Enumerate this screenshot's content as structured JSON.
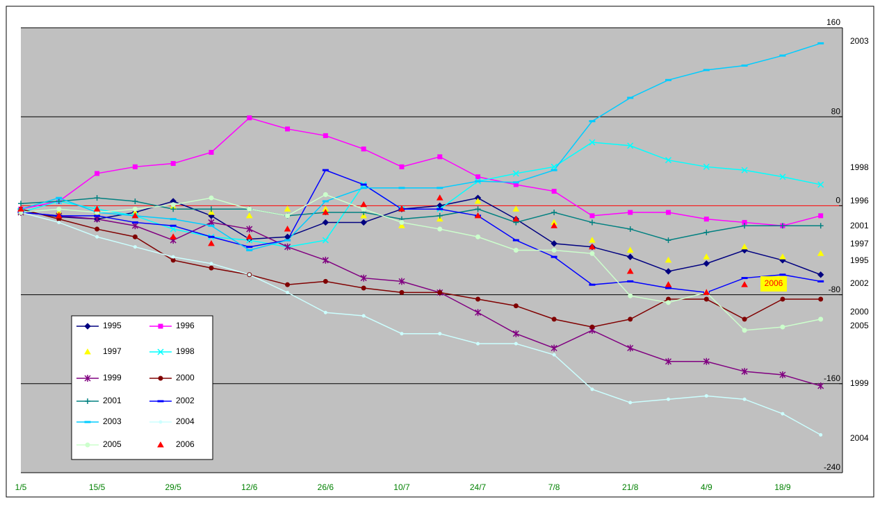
{
  "chart_data": {
    "type": "line",
    "categories": [
      "1/5",
      null,
      "15/5",
      null,
      "29/5",
      null,
      "12/6",
      null,
      "26/6",
      null,
      "10/7",
      null,
      "24/7",
      null,
      "7/8",
      null,
      "21/8",
      null,
      "4/9",
      null,
      "18/9",
      null
    ],
    "series": [
      {
        "name": "1995",
        "color": "#000080",
        "marker": "diamond",
        "line": true,
        "values": [
          -5,
          -10,
          -12,
          -6,
          4,
          -9,
          -30,
          -28,
          -15,
          -15,
          -3,
          0,
          7,
          -12,
          -34,
          -37,
          -46,
          -59,
          -52,
          -40,
          -49,
          -62
        ]
      },
      {
        "name": "1996",
        "color": "#ff00ff",
        "marker": "square",
        "line": true,
        "values": [
          -3,
          4,
          29,
          35,
          38,
          48,
          79,
          69,
          63,
          51,
          35,
          44,
          26,
          19,
          13,
          -9,
          -6,
          -6,
          -12,
          -15,
          -18,
          -9
        ]
      },
      {
        "name": "1997",
        "color": "#ffff00",
        "marker": "triangle",
        "line": false,
        "values": [
          -6,
          -6,
          -6,
          -6,
          -1,
          -6,
          -9,
          -3,
          -3,
          -9,
          -18,
          -12,
          4,
          -3,
          -15,
          -31,
          -40,
          -49,
          -46,
          -37,
          -46,
          -43
        ]
      },
      {
        "name": "1998",
        "color": "#00ffff",
        "marker": "x",
        "line": true,
        "values": [
          -6,
          4,
          -3,
          -9,
          -21,
          -28,
          -31,
          -37,
          -31,
          19,
          -3,
          -3,
          22,
          29,
          35,
          57,
          54,
          41,
          35,
          32,
          26,
          19
        ]
      },
      {
        "name": "1999",
        "color": "#800080",
        "marker": "star",
        "line": true,
        "values": [
          -6,
          -9,
          -12,
          -18,
          -31,
          -15,
          -21,
          -37,
          -49,
          -65,
          -68,
          -78,
          -96,
          -115,
          -128,
          -112,
          -128,
          -140,
          -140,
          -149,
          -152,
          -162
        ]
      },
      {
        "name": "2000",
        "color": "#800000",
        "marker": "circle",
        "line": true,
        "values": [
          -3,
          -12,
          -21,
          -28,
          -49,
          -56,
          -62,
          -71,
          -68,
          -74,
          -78,
          -78,
          -84,
          -90,
          -102,
          -109,
          -102,
          -84,
          -84,
          -102,
          -84,
          -84
        ]
      },
      {
        "name": "2001",
        "color": "#008080",
        "marker": "plus",
        "line": true,
        "values": [
          2,
          4,
          7,
          4,
          -3,
          -3,
          -3,
          -9,
          -6,
          -6,
          -12,
          -9,
          -3,
          -15,
          -6,
          -15,
          -21,
          -31,
          -24,
          -18,
          -18,
          -18
        ]
      },
      {
        "name": "2002",
        "color": "#0000ff",
        "marker": "dash",
        "line": true,
        "values": [
          -6,
          -9,
          -9,
          -15,
          -18,
          -28,
          -37,
          -31,
          32,
          19,
          -3,
          -3,
          -9,
          -31,
          -46,
          -71,
          -68,
          -74,
          -78,
          -65,
          -62,
          -68
        ]
      },
      {
        "name": "2003",
        "color": "#00ccff",
        "marker": "dash",
        "line": true,
        "values": [
          -3,
          7,
          -6,
          -9,
          -12,
          -18,
          -40,
          -31,
          4,
          16,
          16,
          16,
          22,
          21,
          32,
          76,
          97,
          113,
          122,
          126,
          135,
          146
        ]
      },
      {
        "name": "2004",
        "color": "#ccffff",
        "marker": "dot",
        "line": true,
        "values": [
          -6,
          -15,
          -28,
          -37,
          -46,
          -52,
          -62,
          -78,
          -96,
          -99,
          -115,
          -115,
          -124,
          -124,
          -134,
          -165,
          -177,
          -174,
          -171,
          -174,
          -187,
          -206
        ]
      },
      {
        "name": "2005",
        "color": "#ccffcc",
        "marker": "circle",
        "line": true,
        "values": [
          -6,
          -3,
          -6,
          -3,
          1,
          7,
          -3,
          -9,
          10,
          -3,
          -15,
          -21,
          -28,
          -40,
          -40,
          -43,
          -81,
          -87,
          -78,
          -112,
          -109,
          -102
        ]
      },
      {
        "name": "2006",
        "color": "#ff0000",
        "marker": "triangle",
        "line": false,
        "values": [
          -3,
          -9,
          -3,
          -9,
          -28,
          -34,
          -28,
          -21,
          -6,
          1,
          -3,
          7,
          -9,
          -12,
          -18,
          -37,
          -59,
          -71,
          -78,
          -71,
          -68,
          null
        ]
      }
    ],
    "ylim": [
      -240,
      160
    ],
    "yticks": [
      -240,
      -160,
      -80,
      0,
      80,
      160
    ],
    "grid": true,
    "zero_line_color": "#ff0000",
    "legend": "bottom-left"
  }
}
